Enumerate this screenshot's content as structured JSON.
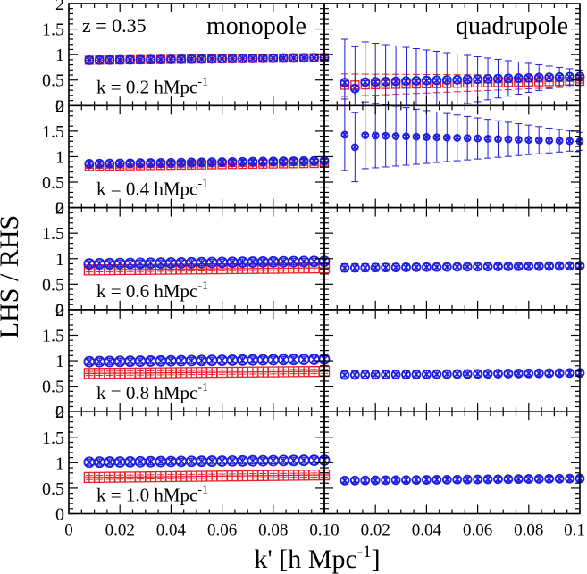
{
  "figure": {
    "redshift_label": "z = 0.35",
    "ylabel": "LHS / RHS",
    "xlabel": "k' [h Mpc",
    "xlabel_sup": "-1",
    "xlabel_close": "]",
    "column_titles": [
      "monopole",
      "quadrupole"
    ],
    "row_label_sup": "-1",
    "colors": {
      "series_red": "#e8202a",
      "series_blue": "#1c1ce0",
      "frame": "#000000"
    }
  },
  "chart_data": {
    "type": "scatter",
    "x": [
      0.008,
      0.012,
      0.016,
      0.02,
      0.024,
      0.028,
      0.032,
      0.036,
      0.04,
      0.044,
      0.048,
      0.052,
      0.056,
      0.06,
      0.064,
      0.068,
      0.072,
      0.076,
      0.08,
      0.084,
      0.088,
      0.092,
      0.096,
      0.1
    ],
    "xlim": [
      0,
      0.1
    ],
    "ylim": [
      0,
      2
    ],
    "x_ticklabels": [
      "0",
      "0.02",
      "0.04",
      "0.06",
      "0.08",
      "0.10"
    ],
    "x_ticklabels_right": [
      "0.02",
      "0.04",
      "0.06",
      "0.08",
      "0.1"
    ],
    "y_ticklabels": [
      "0",
      "0.5",
      "1",
      "1.5",
      "2"
    ],
    "grid": false,
    "panels": [
      {
        "row": 0,
        "col": 0,
        "row_label": "k = 0.2 hMpc",
        "marker_size": 9,
        "red": {
          "start": 0.89,
          "end": 0.94,
          "err": 0.06
        },
        "blue": {
          "start": 0.89,
          "end": 0.94,
          "err": 0.07
        }
      },
      {
        "row": 0,
        "col": 1,
        "marker_size": 9,
        "red": {
          "start": 0.4,
          "end": 0.48,
          "err": 0.22,
          "err_decay": 0.5
        },
        "blue": {
          "start": 0.45,
          "end": 0.57,
          "err": 0.85,
          "err_decay": 0.85,
          "first_low": true
        }
      },
      {
        "row": 1,
        "col": 0,
        "row_label": "k = 0.4 hMpc",
        "marker_size": 9,
        "red": {
          "start": 0.81,
          "end": 0.87,
          "err": 0.04
        },
        "blue": {
          "start": 0.86,
          "end": 0.92,
          "err": 0.05
        }
      },
      {
        "row": 1,
        "col": 1,
        "marker_size": 7,
        "red": {
          "start": 1.45,
          "end": 1.28,
          "err": 0.3,
          "err_decay": 0.6,
          "hidden": true
        },
        "blue": {
          "start": 1.43,
          "end": 1.3,
          "err": 0.7,
          "err_decay": 0.75,
          "first_low": true
        }
      },
      {
        "row": 2,
        "col": 0,
        "row_label": "k = 0.6 hMpc",
        "marker_size": 11,
        "red": {
          "start": 0.78,
          "end": 0.82,
          "err": 0.04
        },
        "blue": {
          "start": 0.9,
          "end": 0.95,
          "err": 0.06
        }
      },
      {
        "row": 2,
        "col": 1,
        "marker_size": 9,
        "red": {
          "start": 0.82,
          "end": 0.86,
          "err": 0.05,
          "hidden": true
        },
        "blue": {
          "start": 0.82,
          "end": 0.86,
          "err": 0.08,
          "err_decay": 0.4
        }
      },
      {
        "row": 3,
        "col": 0,
        "row_label": "k = 0.8 hMpc",
        "marker_size": 11,
        "red": {
          "start": 0.75,
          "end": 0.79,
          "err": 0.04
        },
        "blue": {
          "start": 0.98,
          "end": 1.03,
          "err": 0.06
        }
      },
      {
        "row": 3,
        "col": 1,
        "marker_size": 9,
        "red": {
          "start": 0.72,
          "end": 0.76,
          "err": 0.04,
          "hidden": true
        },
        "blue": {
          "start": 0.72,
          "end": 0.76,
          "err": 0.08,
          "err_decay": 0.4
        }
      },
      {
        "row": 4,
        "col": 0,
        "row_label": "k = 1.0 hMpc",
        "marker_size": 11,
        "red": {
          "start": 0.71,
          "end": 0.76,
          "err": 0.04
        },
        "blue": {
          "start": 1.01,
          "end": 1.05,
          "err": 0.06
        }
      },
      {
        "row": 4,
        "col": 1,
        "marker_size": 9,
        "red": {
          "start": 0.65,
          "end": 0.69,
          "err": 0.04,
          "hidden": true
        },
        "blue": {
          "start": 0.65,
          "end": 0.69,
          "err": 0.05
        }
      }
    ]
  }
}
